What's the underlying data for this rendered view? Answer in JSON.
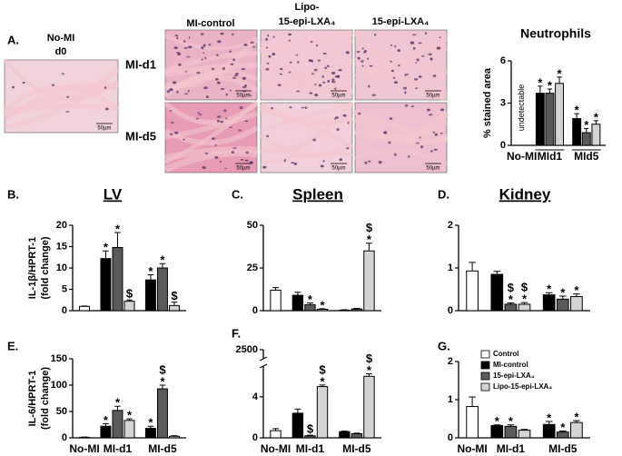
{
  "figure": {
    "label": "A.",
    "reference": {
      "title": [
        "No-MI",
        "d0"
      ]
    },
    "columns": [
      [
        "MI-control"
      ],
      [
        "Lipo-",
        "15-epi-LXA₄"
      ],
      [
        "15-epi-LXA₄"
      ]
    ],
    "rows": [
      "MI-d1",
      "MI-d5"
    ],
    "scale_bar": "50µm"
  },
  "chart_data": [
    {
      "type": "bar",
      "title": "Neutrophils",
      "ylabel": [
        "% stained area"
      ],
      "annotation": "undetectable",
      "group_lines": true,
      "categories": [
        "No-MI",
        "MId1",
        "MId5"
      ],
      "ylim": [
        0,
        6
      ],
      "yticks": [
        0,
        3,
        6
      ],
      "series": [
        {
          "color": "#000000",
          "values": [
            null,
            3.7,
            1.9
          ],
          "errors": [
            null,
            0.5,
            0.35
          ],
          "annotations": [
            null,
            [
              "*"
            ],
            [
              "*"
            ]
          ]
        },
        {
          "color": "#5a5a5a",
          "values": [
            null,
            3.7,
            0.9
          ],
          "errors": [
            null,
            0.3,
            0.3
          ],
          "annotations": [
            null,
            [
              "*"
            ],
            [
              "*"
            ]
          ]
        },
        {
          "color": "#d4d4d4",
          "values": [
            null,
            4.4,
            1.5
          ],
          "errors": [
            null,
            0.45,
            0.25
          ],
          "annotations": [
            null,
            [
              "*"
            ],
            [
              "*"
            ]
          ]
        }
      ]
    },
    {
      "type": "bar",
      "label": "B.",
      "title": "LV",
      "title_underline": true,
      "ylabel": [
        "IL-1β/HPRT-1",
        "(fold change)"
      ],
      "categories": [
        null,
        null,
        null
      ],
      "ylim": [
        0,
        20
      ],
      "yticks": [
        0,
        5,
        10,
        15,
        20
      ],
      "series": [
        {
          "color": "#ffffff",
          "values": [
            1,
            null,
            null
          ],
          "errors": [
            0.1,
            null,
            null
          ],
          "annotations": [
            null,
            null,
            null
          ]
        },
        {
          "color": "#000000",
          "values": [
            null,
            12.2,
            7.2
          ],
          "errors": [
            null,
            1.8,
            1.2
          ],
          "annotations": [
            null,
            [
              "*"
            ],
            [
              "*"
            ]
          ]
        },
        {
          "color": "#5a5a5a",
          "values": [
            null,
            14.8,
            10
          ],
          "errors": [
            null,
            3.5,
            1
          ],
          "annotations": [
            null,
            [
              "*"
            ],
            [
              "*"
            ]
          ]
        },
        {
          "color": "#d4d4d4",
          "values": [
            null,
            2.2,
            1.2
          ],
          "errors": [
            null,
            0.3,
            0.8
          ],
          "annotations": [
            null,
            [
              "$"
            ],
            [
              "$"
            ]
          ]
        }
      ]
    },
    {
      "type": "bar",
      "label": "C.",
      "title": "Spleen",
      "title_underline": true,
      "categories": [
        null,
        null,
        null
      ],
      "ylim": [
        0,
        50
      ],
      "yticks": [
        0,
        25,
        50
      ],
      "series": [
        {
          "color": "#ffffff",
          "values": [
            12,
            null,
            null
          ],
          "errors": [
            1.5,
            null,
            null
          ],
          "annotations": [
            null,
            null,
            null
          ]
        },
        {
          "color": "#000000",
          "values": [
            null,
            9,
            0.3
          ],
          "errors": [
            null,
            1.8,
            0.2
          ],
          "annotations": [
            null,
            null,
            null
          ]
        },
        {
          "color": "#5a5a5a",
          "values": [
            null,
            3.5,
            1
          ],
          "errors": [
            null,
            1,
            0.3
          ],
          "annotations": [
            null,
            [
              "*"
            ],
            null
          ]
        },
        {
          "color": "#d4d4d4",
          "values": [
            null,
            0.8,
            35
          ],
          "errors": [
            null,
            0.3,
            4.5
          ],
          "annotations": [
            null,
            [
              "*"
            ],
            [
              "$",
              "*"
            ]
          ]
        }
      ]
    },
    {
      "type": "bar",
      "label": "D.",
      "title": "Kidney",
      "title_underline": true,
      "categories": [
        null,
        null,
        null
      ],
      "ylim": [
        0,
        2
      ],
      "yticks": [
        0,
        1,
        2
      ],
      "series": [
        {
          "color": "#ffffff",
          "values": [
            0.93,
            null,
            null
          ],
          "errors": [
            0.2,
            null,
            null
          ],
          "annotations": [
            null,
            null,
            null
          ]
        },
        {
          "color": "#000000",
          "values": [
            null,
            0.85,
            0.37
          ],
          "errors": [
            null,
            0.07,
            0.05
          ],
          "annotations": [
            null,
            null,
            [
              "*"
            ]
          ]
        },
        {
          "color": "#5a5a5a",
          "values": [
            null,
            0.15,
            0.27
          ],
          "errors": [
            null,
            0.03,
            0.07
          ],
          "annotations": [
            null,
            [
              "$",
              "*"
            ],
            [
              "*"
            ]
          ]
        },
        {
          "color": "#d4d4d4",
          "values": [
            null,
            0.15,
            0.33
          ],
          "errors": [
            null,
            0.04,
            0.06
          ],
          "annotations": [
            null,
            [
              "$",
              "*"
            ],
            [
              "*"
            ]
          ]
        }
      ]
    },
    {
      "type": "bar",
      "label": "E.",
      "ylabel": [
        "IL-6/HPRT-1",
        "(fold change)"
      ],
      "categories": [
        "No-MI",
        "MI-d1",
        "MI-d5"
      ],
      "ylim": [
        0,
        150
      ],
      "yticks": [
        0,
        50,
        100,
        150
      ],
      "series": [
        {
          "color": "#ffffff",
          "values": [
            1,
            null,
            null
          ],
          "errors": [
            0.5,
            null,
            null
          ],
          "annotations": [
            null,
            null,
            null
          ]
        },
        {
          "color": "#000000",
          "values": [
            null,
            22,
            18
          ],
          "errors": [
            null,
            5,
            4
          ],
          "annotations": [
            null,
            [
              "*"
            ],
            [
              "*"
            ]
          ]
        },
        {
          "color": "#5a5a5a",
          "values": [
            null,
            52,
            93
          ],
          "errors": [
            null,
            8,
            7
          ],
          "annotations": [
            null,
            [
              "*"
            ],
            [
              "$",
              "*"
            ]
          ]
        },
        {
          "color": "#d4d4d4",
          "values": [
            null,
            33,
            3
          ],
          "errors": [
            null,
            3,
            1
          ],
          "annotations": [
            null,
            [
              "*"
            ],
            null
          ]
        }
      ]
    },
    {
      "type": "bar",
      "label": "F.",
      "categories": [
        "No-MI",
        "MI-d1",
        "MI-d5"
      ],
      "ylim": [
        0,
        2500
      ],
      "ybreak": [
        7,
        2400
      ],
      "yticks": [
        0,
        4,
        2500
      ],
      "series": [
        {
          "color": "#ffffff",
          "values": [
            0.7,
            null,
            null
          ],
          "errors": [
            0.2,
            null,
            null
          ],
          "annotations": [
            null,
            null,
            null
          ]
        },
        {
          "color": "#000000",
          "values": [
            null,
            2.4,
            0.6
          ],
          "errors": [
            null,
            0.4,
            0.05
          ],
          "annotations": [
            null,
            null,
            null
          ]
        },
        {
          "color": "#5a5a5a",
          "values": [
            null,
            0.2,
            0.4
          ],
          "errors": [
            null,
            0.05,
            0.05
          ],
          "annotations": [
            null,
            [
              "$"
            ],
            null
          ]
        },
        {
          "color": "#d4d4d4",
          "values": [
            null,
            5,
            6
          ],
          "errors": [
            null,
            0.15,
            0.25
          ],
          "annotations": [
            null,
            [
              "$",
              "*"
            ],
            [
              "$",
              "*"
            ]
          ]
        }
      ]
    },
    {
      "type": "bar",
      "label": "G.",
      "legend": "upper right",
      "categories": [
        "No-MI",
        "MI-d1",
        "MI-d5"
      ],
      "ylim": [
        0,
        2
      ],
      "yticks": [
        0,
        1,
        2
      ],
      "series": [
        {
          "name": "Control",
          "color": "#ffffff",
          "values": [
            0.82,
            null,
            null
          ],
          "errors": [
            0.25,
            null,
            null
          ],
          "annotations": [
            null,
            null,
            null
          ]
        },
        {
          "name": "MI-control",
          "color": "#000000",
          "values": [
            null,
            0.32,
            0.35
          ],
          "errors": [
            null,
            0.02,
            0.08
          ],
          "annotations": [
            null,
            [
              "*"
            ],
            [
              "*"
            ]
          ]
        },
        {
          "name": "15-epi-LXA₄",
          "color": "#5a5a5a",
          "values": [
            null,
            0.3,
            0.15
          ],
          "errors": [
            null,
            0.04,
            0.03
          ],
          "annotations": [
            null,
            [
              "*"
            ],
            [
              "*"
            ]
          ]
        },
        {
          "name": "Lipo-15-epi-LXA₄",
          "color": "#d4d4d4",
          "values": [
            null,
            0.2,
            0.4
          ],
          "errors": [
            null,
            0.02,
            0.05
          ],
          "annotations": [
            null,
            null,
            [
              "*"
            ]
          ]
        }
      ]
    }
  ]
}
